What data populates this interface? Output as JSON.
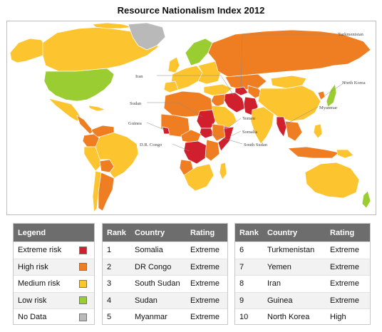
{
  "title": "Resource Nationalism Index 2012",
  "map": {
    "labels": [
      "Turkmenistan",
      "Iran",
      "North Korea",
      "Sudan",
      "Yemen",
      "Myanmar",
      "Guinea",
      "Somalia",
      "D.R. Congo",
      "South Sudan"
    ],
    "colors": {
      "extreme": "#d0202e",
      "high": "#ef7e22",
      "medium": "#fcc42f",
      "low": "#9acd32",
      "nodata": "#b9b9b9",
      "border": "#ffffff",
      "ocean": "#ffffff"
    }
  },
  "legend": {
    "header": "Legend",
    "items": [
      {
        "label": "Extreme risk",
        "color": "#d0202e"
      },
      {
        "label": "High risk",
        "color": "#ef7e22"
      },
      {
        "label": "Medium risk",
        "color": "#fcc42f"
      },
      {
        "label": "Low risk",
        "color": "#9acd32"
      },
      {
        "label": "No Data",
        "color": "#b9b9b9"
      }
    ]
  },
  "rank_table_1": {
    "headers": [
      "Rank",
      "Country",
      "Rating"
    ],
    "rows": [
      {
        "rank": "1",
        "country": "Somalia",
        "rating": "Extreme"
      },
      {
        "rank": "2",
        "country": "DR Congo",
        "rating": "Extreme"
      },
      {
        "rank": "3",
        "country": "South Sudan",
        "rating": "Extreme"
      },
      {
        "rank": "4",
        "country": "Sudan",
        "rating": "Extreme"
      },
      {
        "rank": "5",
        "country": "Myanmar",
        "rating": "Extreme"
      }
    ]
  },
  "rank_table_2": {
    "headers": [
      "Rank",
      "Country",
      "Rating"
    ],
    "rows": [
      {
        "rank": "6",
        "country": "Turkmenistan",
        "rating": "Extreme"
      },
      {
        "rank": "7",
        "country": "Yemen",
        "rating": "Extreme"
      },
      {
        "rank": "8",
        "country": "Iran",
        "rating": "Extreme"
      },
      {
        "rank": "9",
        "country": "Guinea",
        "rating": "Extreme"
      },
      {
        "rank": "10",
        "country": "North Korea",
        "rating": "High"
      }
    ]
  }
}
